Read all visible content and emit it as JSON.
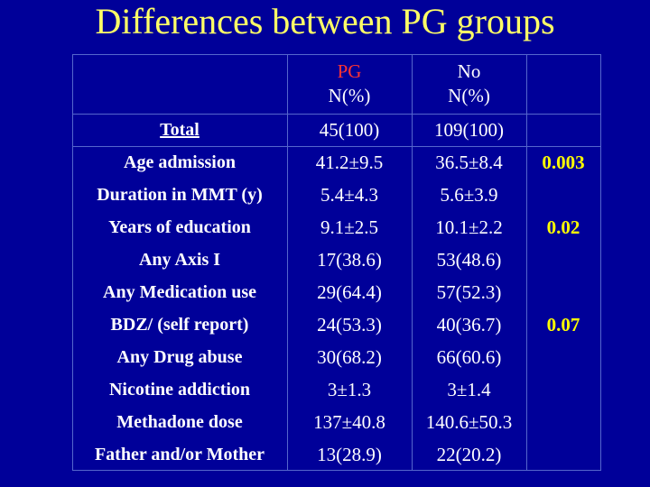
{
  "title": "Differences between PG groups",
  "colors": {
    "background": "#000099",
    "title": "#ffff66",
    "pg_header": "#ff3333",
    "p_value": "#ffff00",
    "text": "#ffffff"
  },
  "header": {
    "pg": "PG",
    "no": "No",
    "unit_pg": "N(%)",
    "unit_no": "N(%)"
  },
  "rows": [
    {
      "label": "Total",
      "pg": "45(100)",
      "no": "109(100)"
    },
    {
      "label": "Age admission",
      "pg": "41.2±9.5",
      "no": "36.5±8.4"
    },
    {
      "label": "Duration in MMT (y)",
      "pg": "5.4±4.3",
      "no": "5.6±3.9"
    },
    {
      "label": "Years of education",
      "pg": "9.1±2.5",
      "no": "10.1±2.2"
    },
    {
      "label": "Any Axis I",
      "pg": "17(38.6)",
      "no": "53(48.6)"
    },
    {
      "label": "Any Medication use",
      "pg": "29(64.4)",
      "no": "57(52.3)"
    },
    {
      "label": "BDZ/ (self report)",
      "pg": "24(53.3)",
      "no": "40(36.7)"
    },
    {
      "label": "Any Drug abuse",
      "pg": "30(68.2)",
      "no": "66(60.6)"
    },
    {
      "label": "Nicotine addiction",
      "pg": "3±1.3",
      "no": "3±1.4"
    },
    {
      "label": "Methadone dose",
      "pg": "137±40.8",
      "no": "140.6±50.3"
    },
    {
      "label": "Father and/or Mother",
      "pg": "13(28.9)",
      "no": "22(20.2)"
    }
  ],
  "p_values": {
    "age": "0.003",
    "education": "0.02",
    "bdz": "0.07"
  }
}
